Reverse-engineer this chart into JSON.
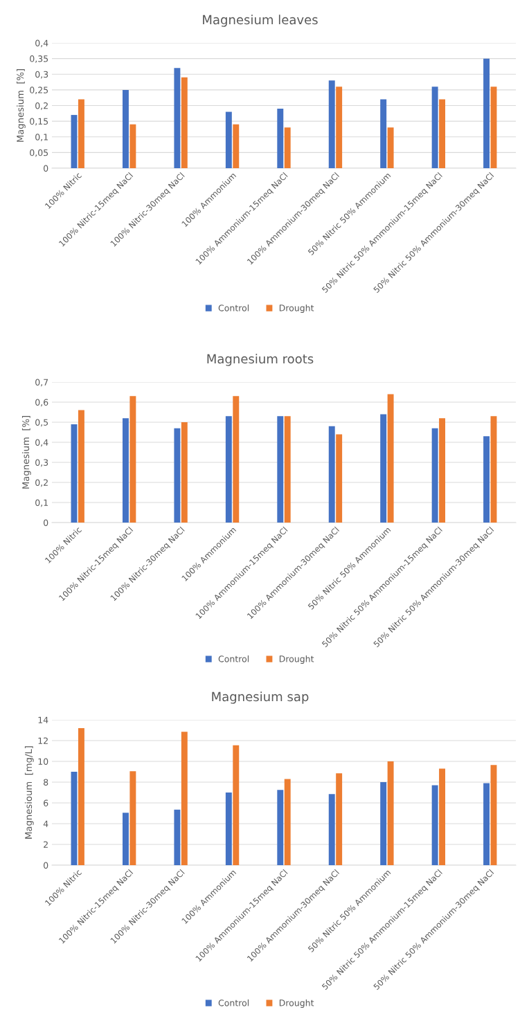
{
  "chart_data": [
    {
      "type": "bar",
      "title": "Magnesium leaves",
      "ylabel": "Magnesium  [%]",
      "categories": [
        "100% Nitric",
        "100% Nitric-15meq NaCl",
        "100% Nitric-30meq NaCl",
        "100% Ammonium",
        "100% Ammonium-15meq NaCl",
        "100% Ammonium-30meq NaCl",
        "50% Nitric 50% Ammonium",
        "50% Nitric 50% Ammonium-15meq NaCl",
        "50% Nitric 50% Ammonium-30meq NaCl"
      ],
      "series": [
        {
          "name": "Control",
          "color": "#4472c4",
          "values": [
            0.17,
            0.25,
            0.32,
            0.18,
            0.19,
            0.28,
            0.22,
            0.26,
            0.35
          ]
        },
        {
          "name": "Drought",
          "color": "#ed7d31",
          "values": [
            0.22,
            0.14,
            0.29,
            0.14,
            0.13,
            0.26,
            0.13,
            0.22,
            0.26
          ]
        }
      ],
      "ylim": [
        0,
        0.4
      ],
      "yticks": [
        0,
        {
          "value": 0.05,
          "label": "0,05"
        },
        {
          "value": 0.1,
          "label": "0,1"
        },
        {
          "value": 0.15,
          "label": "0,15"
        },
        {
          "value": 0.2,
          "label": "0,2"
        },
        {
          "value": 0.25,
          "label": "0,25"
        },
        {
          "value": 0.3,
          "label": "0,3"
        },
        {
          "value": 0.35,
          "label": "0,35"
        },
        {
          "value": 0.4,
          "label": "0,4"
        }
      ],
      "grid": "y",
      "legend": "bottom"
    },
    {
      "type": "bar",
      "title": "Magnesium roots",
      "ylabel": "Magnesium  [%]",
      "categories": [
        "100% Nitric",
        "100% Nitric-15meq NaCl",
        "100% Nitric-30meq NaCl",
        "100% Ammonium",
        "100% Ammonium-15meq NaCl",
        "100% Ammonium-30meq NaCl",
        "50% Nitric 50% Ammonium",
        "50% Nitric 50% Ammonium-15meq NaCl",
        "50% Nitric 50% Ammonium-30meq NaCl"
      ],
      "series": [
        {
          "name": "Control",
          "color": "#4472c4",
          "values": [
            0.49,
            0.52,
            0.47,
            0.53,
            0.53,
            0.48,
            0.54,
            0.47,
            0.43
          ]
        },
        {
          "name": "Drought",
          "color": "#ed7d31",
          "values": [
            0.56,
            0.63,
            0.5,
            0.63,
            0.53,
            0.44,
            0.64,
            0.52,
            0.53
          ]
        }
      ],
      "ylim": [
        0,
        0.7
      ],
      "yticks": [
        0,
        {
          "value": 0.1,
          "label": "0,1"
        },
        {
          "value": 0.2,
          "label": "0,2"
        },
        {
          "value": 0.3,
          "label": "0,3"
        },
        {
          "value": 0.4,
          "label": "0,4"
        },
        {
          "value": 0.5,
          "label": "0,5"
        },
        {
          "value": 0.6,
          "label": "0,6"
        },
        {
          "value": 0.7,
          "label": "0,7"
        }
      ],
      "grid": "y",
      "legend": "bottom"
    },
    {
      "type": "bar",
      "title": "Magnesium sap",
      "ylabel": "Magnesioum  [mg/L]",
      "categories": [
        "100% Nitric",
        "100% Nitric-15meq NaCl",
        "100% Nitric-30meq NaCl",
        "100% Ammonium",
        "100% Ammonium-15meq NaCl",
        "100% Ammonium-30meq NaCl",
        "50% Nitric 50% Ammonium",
        "50% Nitric 50% Ammonium-15meq NaCl",
        "50% Nitric 50% Ammonium-30meq NaCl"
      ],
      "series": [
        {
          "name": "Control",
          "color": "#4472c4",
          "values": [
            9.0,
            5.05,
            5.35,
            7.0,
            7.25,
            6.85,
            8.0,
            7.7,
            7.9
          ]
        },
        {
          "name": "Drought",
          "color": "#ed7d31",
          "values": [
            13.2,
            9.05,
            12.85,
            11.55,
            8.3,
            8.85,
            10.0,
            9.3,
            9.65
          ]
        }
      ],
      "ylim": [
        0,
        14
      ],
      "yticks": [
        0,
        2,
        4,
        6,
        8,
        10,
        12,
        14
      ],
      "grid": "y",
      "legend": "bottom"
    }
  ]
}
